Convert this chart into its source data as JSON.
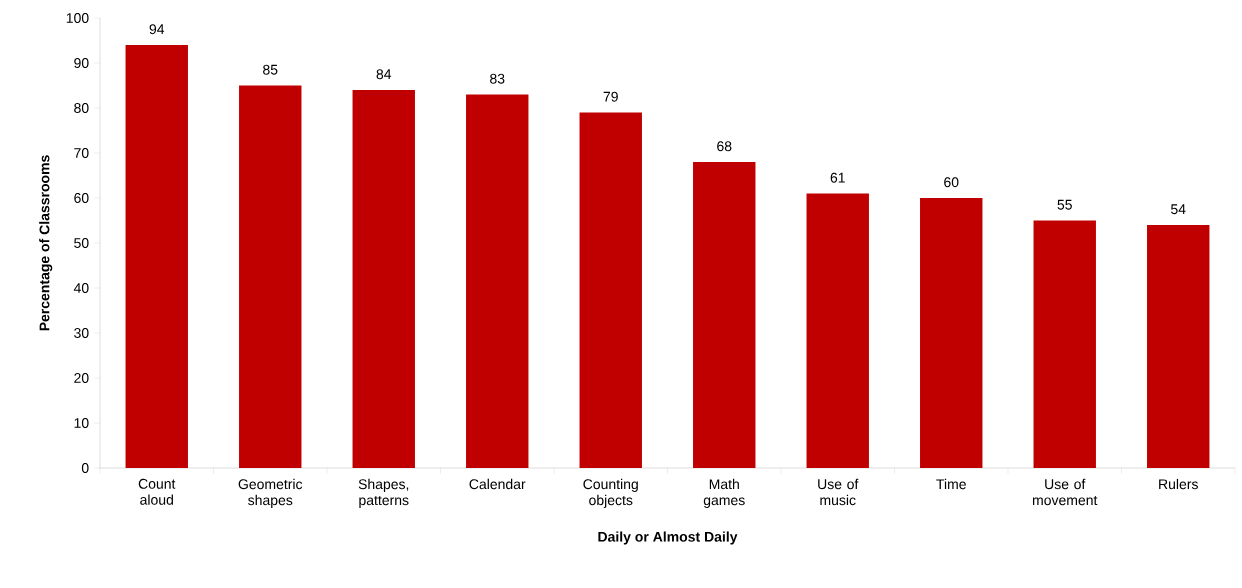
{
  "chart_data": {
    "type": "bar",
    "xlabel": "Daily or Almost Daily",
    "ylabel": "Percentage of Classrooms",
    "categories": [
      "Count aloud",
      "Geometric shapes",
      "Shapes, patterns",
      "Calendar",
      "Counting objects",
      "Math games",
      "Use of music",
      "Time",
      "Use of movement",
      "Rulers"
    ],
    "values": [
      94,
      85,
      84,
      83,
      79,
      68,
      61,
      60,
      55,
      54
    ],
    "color": "#c00000",
    "ylim": [
      0,
      100
    ],
    "yticks": [
      0,
      10,
      20,
      30,
      40,
      50,
      60,
      70,
      80,
      90,
      100
    ],
    "data_labels": true,
    "grid": false
  }
}
